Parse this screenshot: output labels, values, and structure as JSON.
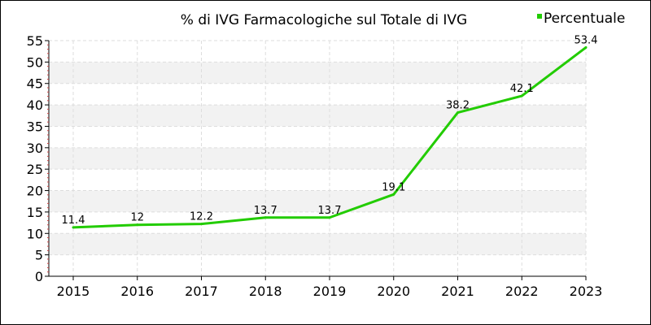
{
  "chart_data": {
    "type": "line",
    "title": "% di IVG Farmacologiche sul Totale di IVG",
    "xlabel": "",
    "ylabel": "",
    "categories": [
      "2015",
      "2016",
      "2017",
      "2018",
      "2019",
      "2020",
      "2021",
      "2022",
      "2023"
    ],
    "series": [
      {
        "name": "Percentuale",
        "values": [
          11.4,
          12,
          12.2,
          13.7,
          13.7,
          19.1,
          38.2,
          42.1,
          53.4
        ],
        "labels": [
          "11.4",
          "12",
          "12.2",
          "13.7",
          "13.7",
          "19.1",
          "38.2",
          "42.1",
          "53.4"
        ],
        "color": "#22cc00"
      }
    ],
    "ylim": [
      0,
      55
    ],
    "yticks": [
      0,
      5,
      10,
      15,
      20,
      25,
      30,
      35,
      40,
      45,
      50,
      55
    ],
    "grid": true,
    "legend": "top-right",
    "colors": {
      "band": "#f2f2f2",
      "grid": "#dddddd",
      "axis": "#000000",
      "minor_tick": "#cc4444"
    }
  }
}
